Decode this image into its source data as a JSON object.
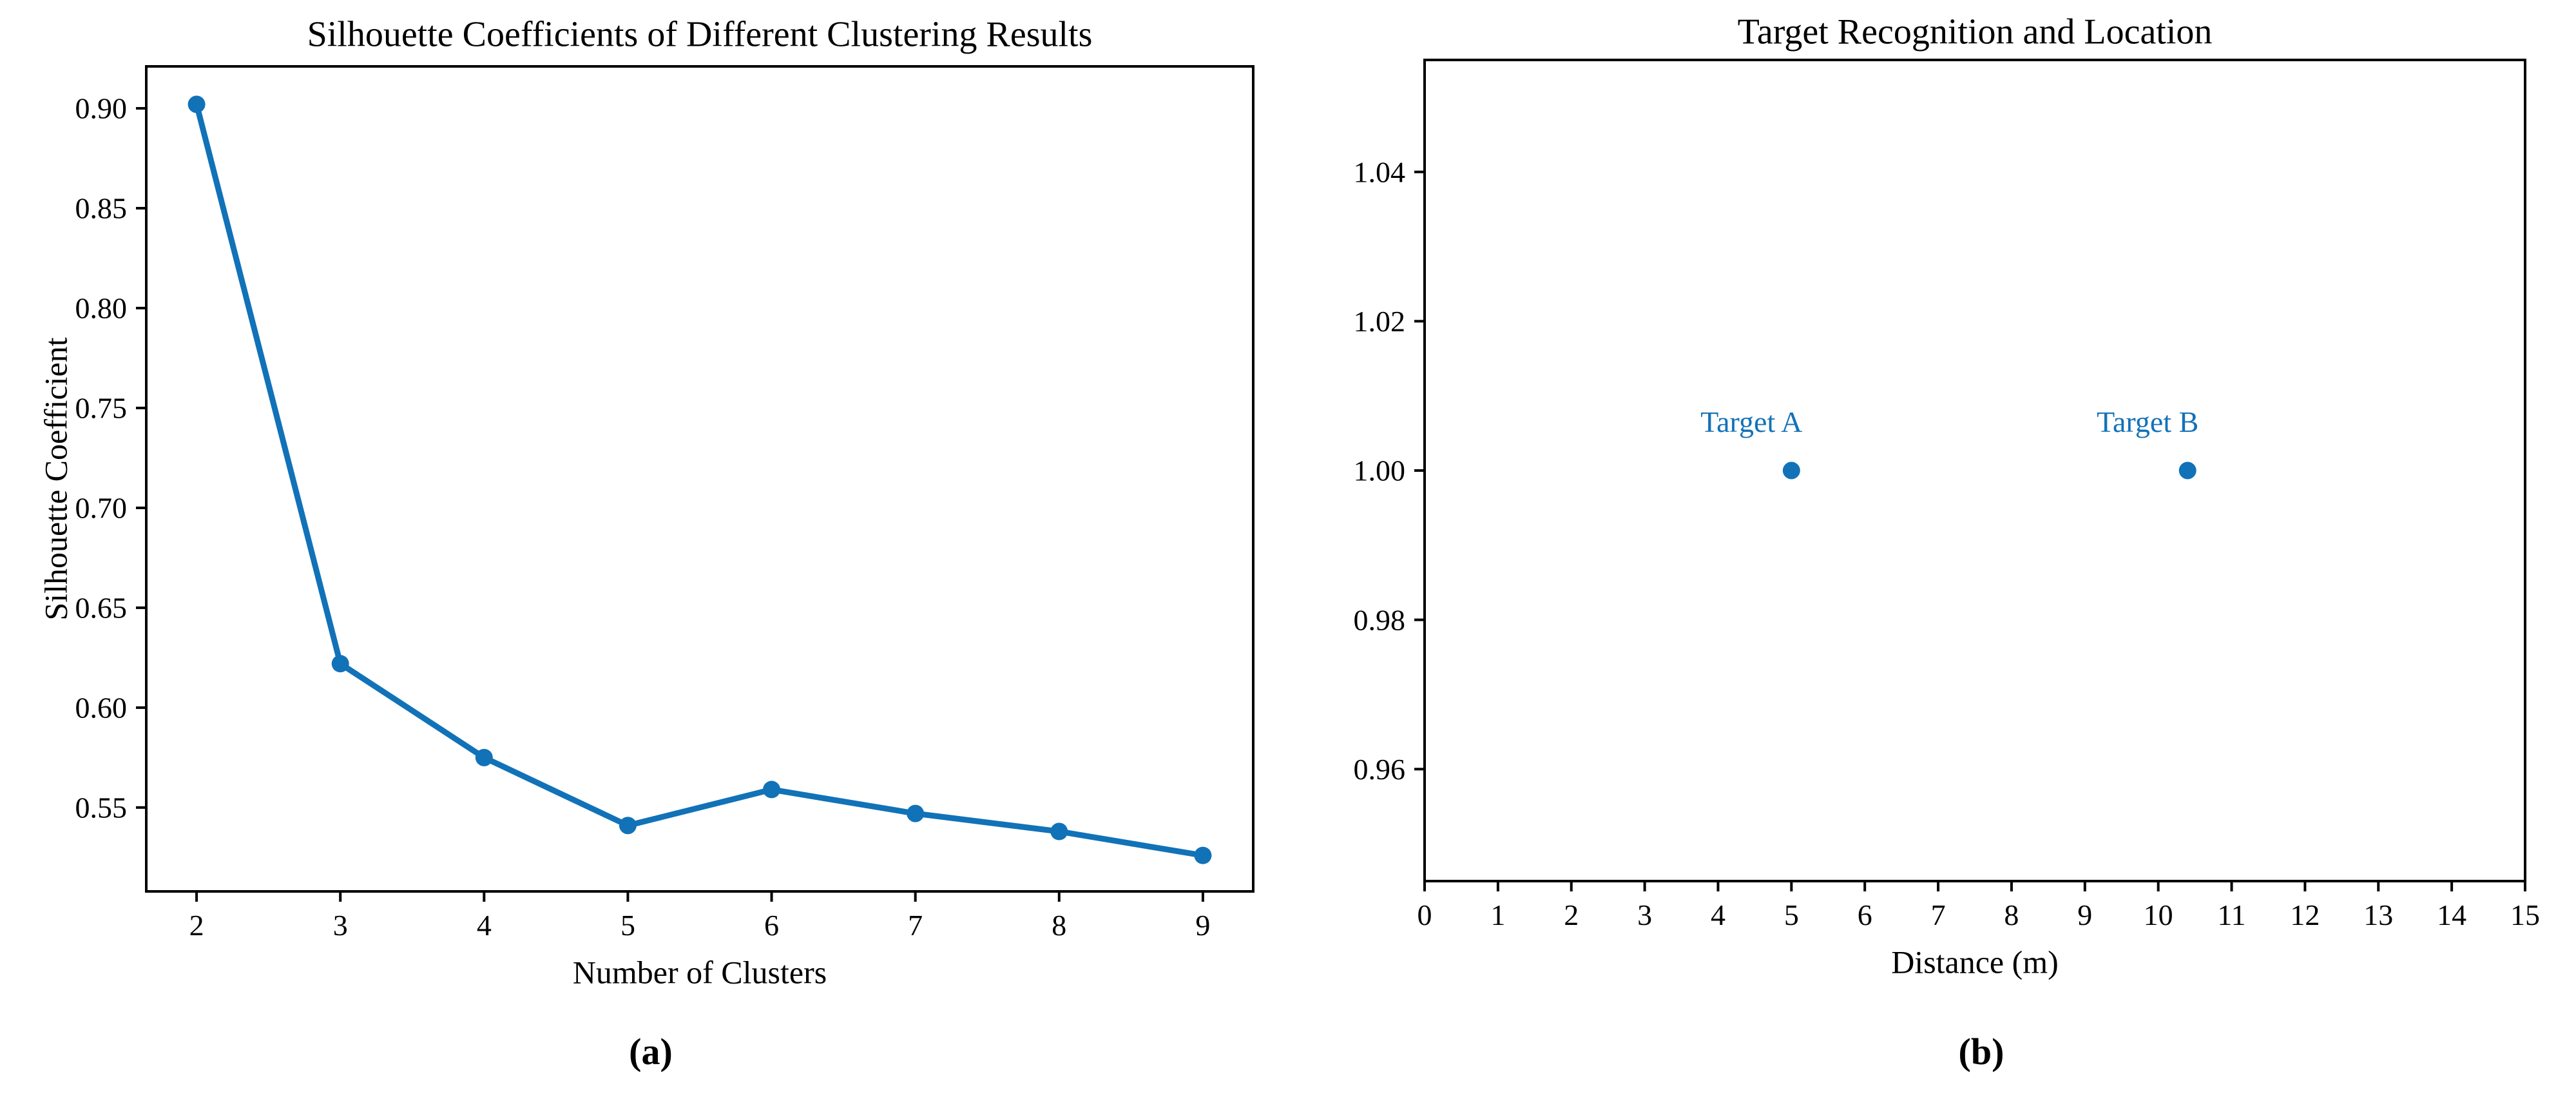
{
  "figure": {
    "captions": {
      "a": "(a)",
      "b": "(b)"
    }
  },
  "chart_data": [
    {
      "id": "silhouette-line-chart",
      "type": "line",
      "title": "Silhouette Coefficients of Different Clustering Results",
      "xlabel": "Number of Clusters",
      "ylabel": "Silhouette Coefficient",
      "x": [
        2,
        3,
        4,
        5,
        6,
        7,
        8,
        9
      ],
      "y": [
        0.902,
        0.622,
        0.575,
        0.541,
        0.559,
        0.547,
        0.538,
        0.526
      ],
      "xticks": [
        2,
        3,
        4,
        5,
        6,
        7,
        8,
        9
      ],
      "yticks": [
        0.55,
        0.6,
        0.65,
        0.7,
        0.75,
        0.8,
        0.85,
        0.9
      ],
      "xlim": [
        1.65,
        9.35
      ],
      "ylim": [
        0.508,
        0.921
      ],
      "grid": false,
      "legend": "none",
      "line_color": "#1172b8",
      "marker": "circle"
    },
    {
      "id": "target-scatter-chart",
      "type": "scatter",
      "title": "Target Recognition and Location",
      "xlabel": "Distance (m)",
      "ylabel": "",
      "points": [
        {
          "label": "Target A",
          "x": 5.0,
          "y": 1.0
        },
        {
          "label": "Target B",
          "x": 10.4,
          "y": 1.0
        }
      ],
      "xticks": [
        0,
        1,
        2,
        3,
        4,
        5,
        6,
        7,
        8,
        9,
        10,
        11,
        12,
        13,
        14,
        15
      ],
      "yticks": [
        0.96,
        0.98,
        1.0,
        1.02,
        1.04
      ],
      "xlim": [
        0,
        15
      ],
      "ylim": [
        0.945,
        1.055
      ],
      "grid": false,
      "legend": "none",
      "point_color": "#1172b8",
      "label_color": "#1172b8"
    }
  ]
}
